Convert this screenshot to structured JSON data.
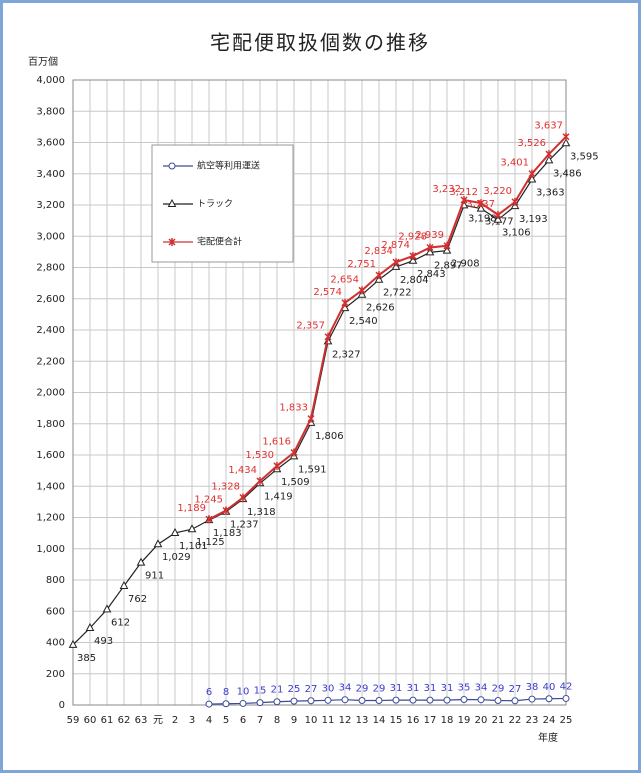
{
  "chart_data": {
    "type": "line",
    "title": "宅配便取扱個数の推移",
    "y_label": "百万個",
    "x_label": "年度",
    "categories": [
      "59",
      "60",
      "61",
      "62",
      "63",
      "元",
      "2",
      "3",
      "4",
      "5",
      "6",
      "7",
      "8",
      "9",
      "10",
      "11",
      "12",
      "13",
      "14",
      "15",
      "16",
      "17",
      "18",
      "19",
      "20",
      "21",
      "22",
      "23",
      "24",
      "25"
    ],
    "ylim": [
      0,
      4000
    ],
    "yticks": [
      0,
      200,
      400,
      600,
      800,
      {
        "value": 1000,
        "label": "1,000"
      },
      {
        "value": 1200,
        "label": "1,200"
      },
      {
        "value": 1400,
        "label": "1,400"
      },
      {
        "value": 1600,
        "label": "1,600"
      },
      {
        "value": 1800,
        "label": "1,800"
      },
      {
        "value": 2000,
        "label": "2,000"
      },
      {
        "value": 2200,
        "label": "2,200"
      },
      {
        "value": 2400,
        "label": "2,400"
      },
      {
        "value": 2600,
        "label": "2,600"
      },
      {
        "value": 2800,
        "label": "2,800"
      },
      {
        "value": 3000,
        "label": "3,000"
      },
      {
        "value": 3200,
        "label": "3,200"
      },
      {
        "value": 3400,
        "label": "3,400"
      },
      {
        "value": 3600,
        "label": "3,600"
      },
      {
        "value": 3800,
        "label": "3,800"
      },
      {
        "value": 4000,
        "label": "4,000"
      }
    ],
    "grid": true,
    "legend": "upper left",
    "series": [
      {
        "name": "航空等利用運送",
        "color": "#3a4a9a",
        "label_color": "#3a3ad0",
        "marker": "circle",
        "values": [
          null,
          null,
          null,
          null,
          null,
          null,
          null,
          null,
          6,
          8,
          10,
          15,
          21,
          25,
          27,
          30,
          34,
          29,
          29,
          31,
          31,
          31,
          31,
          35,
          34,
          29,
          27,
          38,
          40,
          42
        ]
      },
      {
        "name": "トラック",
        "color": "#222222",
        "label_color": "#222222",
        "marker": "triangle",
        "values": [
          385,
          493,
          612,
          762,
          911,
          1029,
          1101,
          1125,
          1183,
          1237,
          1318,
          1419,
          1509,
          1591,
          1806,
          2327,
          2540,
          2626,
          2722,
          2804,
          2843,
          2897,
          2908,
          3198,
          3177,
          3106,
          3193,
          3363,
          3486,
          3595
        ],
        "value_labels": [
          "385",
          "493",
          "612",
          "762",
          "911",
          "1,029",
          "1,101",
          "1,125",
          "1,183",
          "1,237",
          "1,318",
          "1,419",
          "1,509",
          "1,591",
          "1,806",
          "2,327",
          "2,540",
          "2,626",
          "2,722",
          "2,804",
          "2,843",
          "2,897",
          "2,908",
          "3,198",
          "3,177",
          "3,106",
          "3,193",
          "3,363",
          "3,486",
          "3,595"
        ]
      },
      {
        "name": "宅配便合計",
        "color": "#d03030",
        "label_color": "#e03030",
        "marker": "x",
        "values": [
          null,
          null,
          null,
          null,
          null,
          null,
          null,
          null,
          1189,
          1245,
          1328,
          1434,
          1530,
          1616,
          1833,
          2357,
          2574,
          2654,
          2751,
          2834,
          2874,
          2928,
          2939,
          3232,
          3212,
          3137,
          3220,
          3401,
          3526,
          3637
        ],
        "value_labels": [
          null,
          null,
          null,
          null,
          null,
          null,
          null,
          null,
          "1,189",
          "1,245",
          "1,328",
          "1,434",
          "1,530",
          "1,616",
          "1,833",
          "2,357",
          "2,574",
          "2,654",
          "2,751",
          "2,834",
          "2,874",
          "2,928",
          "2,939",
          "3,232",
          "3,212",
          "3,137",
          "3,220",
          "3,401",
          "3,526",
          "3,637"
        ]
      }
    ]
  }
}
